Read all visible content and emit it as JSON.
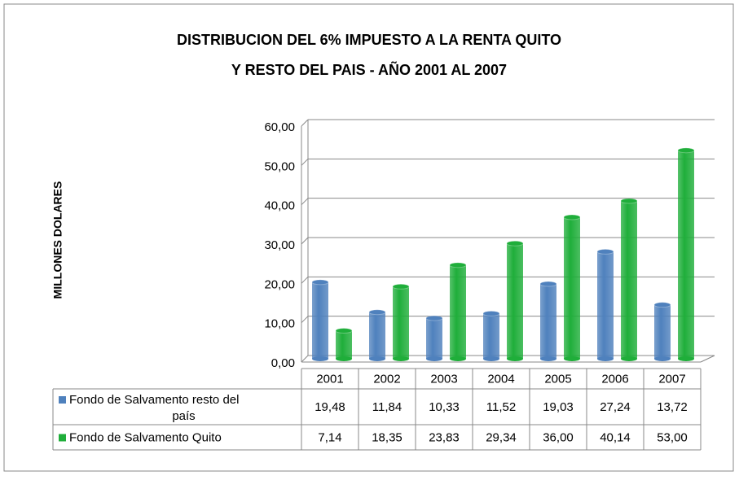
{
  "chart_data": {
    "type": "bar",
    "title": "DISTRIBUCION DEL 6% IMPUESTO A LA RENTA  QUITO",
    "subtitle": "Y RESTO DEL PAIS - AÑO 2001 AL 2007",
    "y_label": "MILLONES DOLARES",
    "categories": [
      "2001",
      "2002",
      "2003",
      "2004",
      "2005",
      "2006",
      "2007"
    ],
    "series": [
      {
        "name": "Fondo de Salvamento resto  del país",
        "color": "#4f81bd",
        "values": [
          19.48,
          11.84,
          10.33,
          11.52,
          19.03,
          27.24,
          13.72
        ],
        "value_labels": [
          "19,48",
          "11,84",
          "10,33",
          "11,52",
          "19,03",
          "27,24",
          "13,72"
        ]
      },
      {
        "name": "Fondo de Salvamento Quito",
        "color": "#1fae3a",
        "values": [
          7.14,
          18.35,
          23.83,
          29.34,
          36.0,
          40.14,
          53.0
        ],
        "value_labels": [
          "7,14",
          "18,35",
          "23,83",
          "29,34",
          "36,00",
          "40,14",
          "53,00"
        ]
      }
    ],
    "ylim": [
      0,
      60
    ],
    "yticks": [
      {
        "value": 0,
        "label": "0,00"
      },
      {
        "value": 10,
        "label": "10,00"
      },
      {
        "value": 20,
        "label": "20,00"
      },
      {
        "value": 30,
        "label": "30,00"
      },
      {
        "value": 40,
        "label": "40,00"
      },
      {
        "value": 50,
        "label": "50,00"
      },
      {
        "value": 60,
        "label": "60,00"
      }
    ],
    "grid": true
  }
}
